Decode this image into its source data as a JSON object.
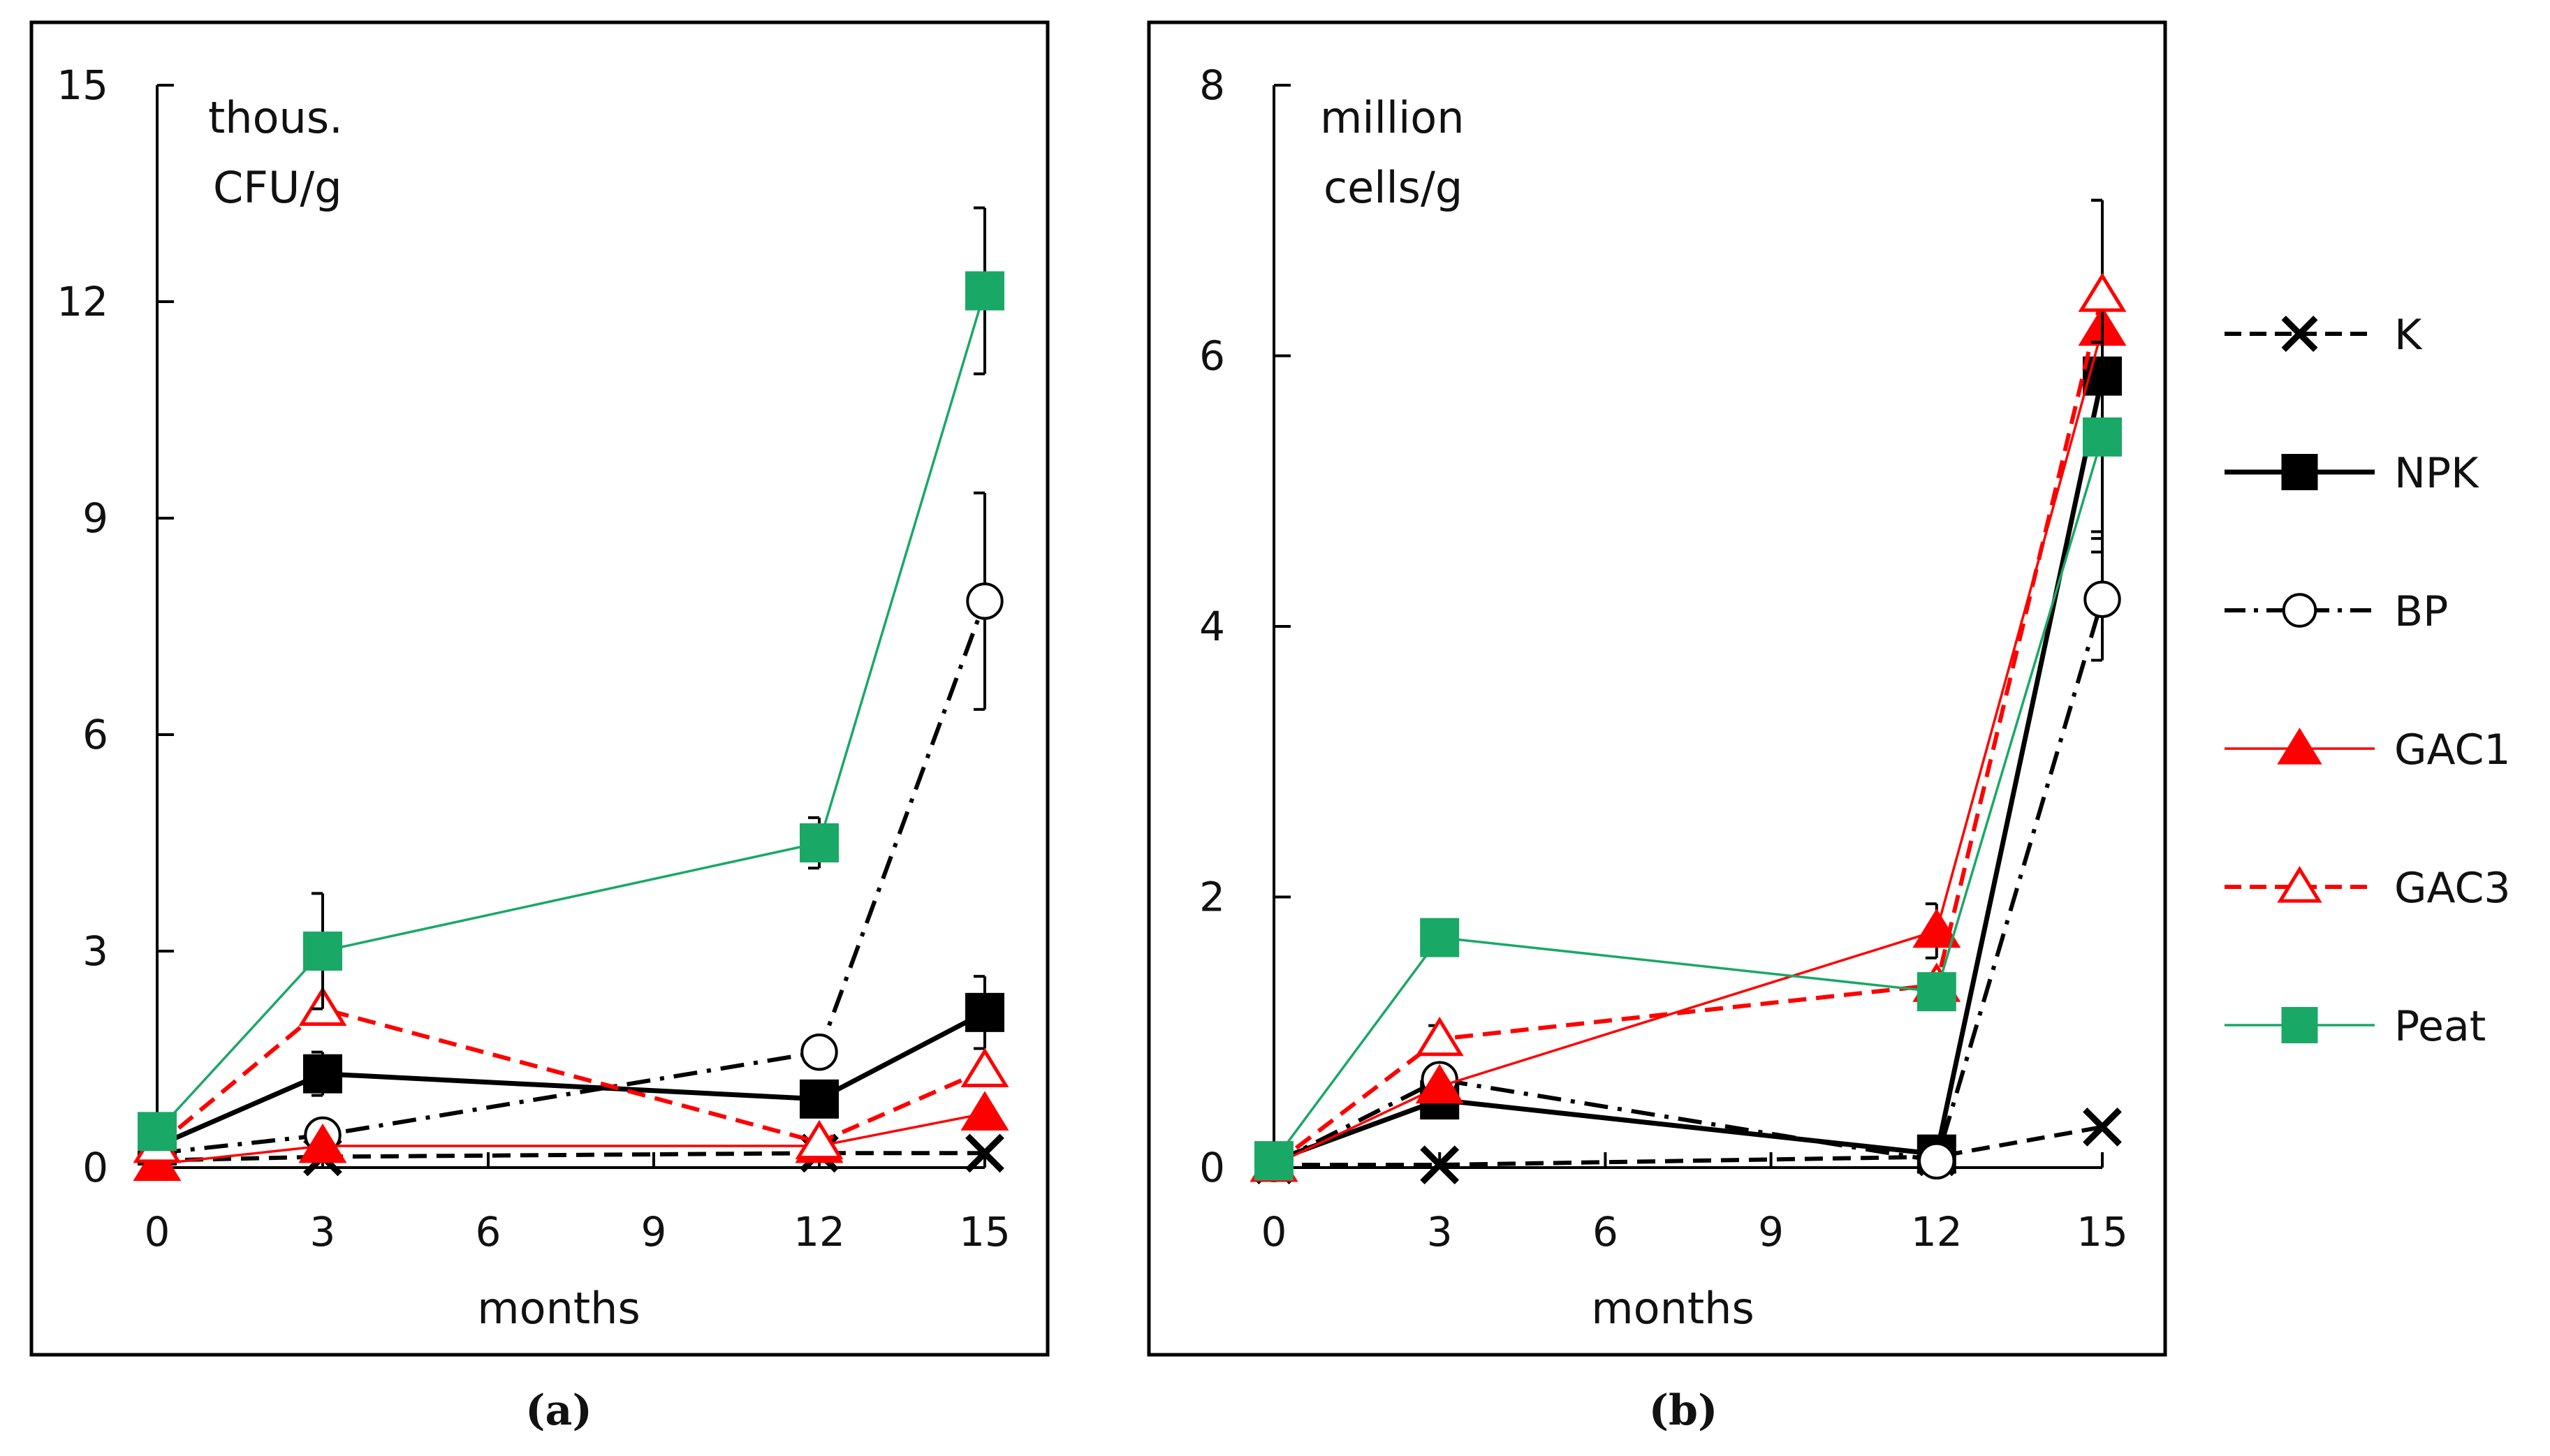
{
  "figure": {
    "panel_a_caption": "(a)",
    "panel_b_caption": "(b)"
  },
  "legend": [
    {
      "key": "K",
      "label": "K",
      "color": "#000000",
      "dash": "dash",
      "marker": "x",
      "fill": "none"
    },
    {
      "key": "NPK",
      "label": "NPK",
      "color": "#000000",
      "dash": "solid",
      "marker": "square",
      "fill": "#000000"
    },
    {
      "key": "BP",
      "label": "BP",
      "color": "#000000",
      "dash": "dashdot",
      "marker": "circle",
      "fill": "#ffffff"
    },
    {
      "key": "GAC1",
      "label": "GAC1",
      "color": "#ff0000",
      "dash": "solid",
      "marker": "triangle",
      "fill": "#ff0000"
    },
    {
      "key": "GAC3",
      "label": "GAC3",
      "color": "#ff0000",
      "dash": "dash",
      "marker": "triangle",
      "fill": "#ffffff"
    },
    {
      "key": "Peat",
      "label": "Peat",
      "color": "#1aa866",
      "dash": "solid",
      "marker": "square",
      "fill": "#1aa866"
    }
  ],
  "chart_data": [
    {
      "type": "line",
      "panel": "(a)",
      "unit_label_line1": "thous.",
      "unit_label_line2": "CFU/g",
      "xlabel": "months",
      "ylabel": "",
      "xlim": [
        0,
        15
      ],
      "ylim": [
        0,
        15
      ],
      "xticks": [
        0,
        3,
        6,
        9,
        12,
        15
      ],
      "yticks": [
        0,
        3,
        6,
        9,
        12,
        15
      ],
      "x": [
        0,
        3,
        12,
        15
      ],
      "series": [
        {
          "name": "K",
          "values": [
            0.1,
            0.15,
            0.2,
            0.2
          ],
          "errors": [
            0,
            0,
            0,
            0
          ]
        },
        {
          "name": "NPK",
          "values": [
            0.3,
            1.3,
            0.95,
            2.15
          ],
          "errors": [
            0,
            0.3,
            0,
            0.5
          ]
        },
        {
          "name": "BP",
          "values": [
            0.2,
            0.45,
            1.6,
            7.85
          ],
          "errors": [
            0,
            0,
            0,
            1.5
          ]
        },
        {
          "name": "GAC1",
          "values": [
            0.05,
            0.3,
            0.3,
            0.75
          ],
          "errors": [
            0,
            0,
            0,
            0
          ]
        },
        {
          "name": "GAC3",
          "values": [
            0.3,
            2.2,
            0.35,
            1.35
          ],
          "errors": [
            0,
            0,
            0,
            0
          ]
        },
        {
          "name": "Peat",
          "values": [
            0.5,
            3.0,
            4.5,
            12.15
          ],
          "errors": [
            0,
            0.8,
            0.35,
            1.15
          ]
        }
      ]
    },
    {
      "type": "line",
      "panel": "(b)",
      "unit_label_line1": "million",
      "unit_label_line2": "cells/g",
      "xlabel": "months",
      "ylabel": "",
      "xlim": [
        0,
        15
      ],
      "ylim": [
        0,
        8
      ],
      "xticks": [
        0,
        3,
        6,
        9,
        12,
        15
      ],
      "yticks": [
        0,
        2,
        4,
        6,
        8
      ],
      "x": [
        0,
        3,
        12,
        15
      ],
      "series": [
        {
          "name": "K",
          "values": [
            0.02,
            0.02,
            0.08,
            0.3
          ],
          "errors": [
            0,
            0,
            0,
            0
          ]
        },
        {
          "name": "NPK",
          "values": [
            0.05,
            0.5,
            0.1,
            5.85
          ],
          "errors": [
            0,
            0,
            0,
            1.3
          ]
        },
        {
          "name": "BP",
          "values": [
            0.03,
            0.65,
            0.05,
            4.2
          ],
          "errors": [
            0,
            0,
            0,
            0.45
          ]
        },
        {
          "name": "GAC1",
          "values": [
            0.02,
            0.6,
            1.75,
            6.2
          ],
          "errors": [
            0,
            0,
            0.2,
            0
          ]
        },
        {
          "name": "GAC3",
          "values": [
            0.02,
            0.95,
            1.35,
            6.45
          ],
          "errors": [
            0,
            0.1,
            0,
            0.7
          ]
        },
        {
          "name": "Peat",
          "values": [
            0.05,
            1.7,
            1.3,
            5.4
          ],
          "errors": [
            0,
            0.1,
            0.1,
            0.7
          ]
        }
      ]
    }
  ]
}
